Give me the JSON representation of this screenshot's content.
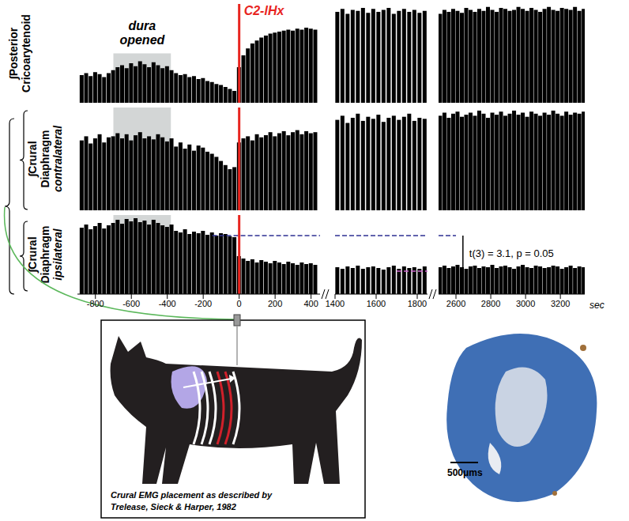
{
  "chart_data": [
    {
      "type": "bar",
      "title": "∫Posterior Cricoarytenoid",
      "color": "#000000",
      "ylim": [
        0,
        100
      ],
      "tick_labels": false,
      "x": [
        -875,
        -850,
        -825,
        -800,
        -775,
        -750,
        -725,
        -700,
        -675,
        -650,
        -625,
        -600,
        -575,
        -550,
        -525,
        -500,
        -475,
        -450,
        -425,
        -400,
        -375,
        -350,
        -325,
        -300,
        -275,
        -250,
        -225,
        -200,
        -175,
        -150,
        -125,
        -100,
        -75,
        -50,
        -25,
        0,
        25,
        50,
        75,
        100,
        125,
        150,
        175,
        200,
        225,
        250,
        275,
        300,
        325,
        350,
        375,
        400,
        425,
        1410,
        1435,
        1460,
        1485,
        1510,
        1535,
        1560,
        1585,
        1610,
        1635,
        1660,
        1685,
        1710,
        1735,
        1760,
        1785,
        1810,
        1835,
        2510,
        2535,
        2560,
        2585,
        2610,
        2635,
        2660,
        2685,
        2710,
        2735,
        2760,
        2785,
        2810,
        2835,
        2860,
        2885,
        2910,
        2935,
        2960,
        2985,
        3010,
        3035,
        3060,
        3085,
        3110,
        3135,
        3160,
        3185,
        3210,
        3235,
        3260,
        3285,
        3310,
        3335
      ],
      "values": [
        28,
        30,
        27,
        31,
        29,
        26,
        30,
        33,
        36,
        38,
        35,
        40,
        37,
        42,
        39,
        36,
        41,
        38,
        35,
        37,
        33,
        30,
        28,
        29,
        26,
        27,
        24,
        25,
        22,
        21,
        19,
        18,
        16,
        14,
        12,
        36,
        48,
        55,
        60,
        63,
        66,
        68,
        70,
        71,
        72,
        73,
        74,
        73,
        75,
        74,
        76,
        75,
        74,
        92,
        95,
        90,
        94,
        93,
        96,
        91,
        95,
        92,
        94,
        96,
        90,
        93,
        95,
        92,
        94,
        91,
        93,
        90,
        94,
        92,
        95,
        93,
        91,
        96,
        94,
        92,
        95,
        93,
        97,
        94,
        92,
        96,
        95,
        93,
        94,
        97,
        95,
        93,
        96,
        94,
        92,
        95,
        97,
        94,
        93,
        96,
        95,
        94,
        97,
        93,
        95
      ]
    },
    {
      "type": "bar",
      "title": "∫Crural Diaphragm",
      "subtitle": "contralateral",
      "color": "#000000",
      "ylim": [
        0,
        100
      ],
      "tick_labels": false,
      "x": [
        -875,
        -850,
        -825,
        -800,
        -775,
        -750,
        -725,
        -700,
        -675,
        -650,
        -625,
        -600,
        -575,
        -550,
        -525,
        -500,
        -475,
        -450,
        -425,
        -400,
        -375,
        -350,
        -325,
        -300,
        -275,
        -250,
        -225,
        -200,
        -175,
        -150,
        -125,
        -100,
        -75,
        -50,
        -25,
        0,
        25,
        50,
        75,
        100,
        125,
        150,
        175,
        200,
        225,
        250,
        275,
        300,
        325,
        350,
        375,
        400,
        425,
        1410,
        1435,
        1460,
        1485,
        1510,
        1535,
        1560,
        1585,
        1610,
        1635,
        1660,
        1685,
        1710,
        1735,
        1760,
        1785,
        1810,
        1835,
        2510,
        2535,
        2560,
        2585,
        2610,
        2635,
        2660,
        2685,
        2710,
        2735,
        2760,
        2785,
        2810,
        2835,
        2860,
        2885,
        2910,
        2935,
        2960,
        2985,
        3010,
        3035,
        3060,
        3085,
        3110,
        3135,
        3160,
        3185,
        3210,
        3235,
        3260,
        3285,
        3310,
        3335
      ],
      "values": [
        68,
        72,
        65,
        70,
        74,
        66,
        71,
        72,
        75,
        70,
        74,
        68,
        73,
        76,
        70,
        72,
        69,
        74,
        71,
        67,
        70,
        62,
        66,
        60,
        64,
        58,
        63,
        61,
        57,
        55,
        52,
        48,
        44,
        40,
        42,
        66,
        70,
        72,
        68,
        74,
        71,
        73,
        76,
        72,
        75,
        77,
        73,
        76,
        78,
        74,
        77,
        75,
        76,
        88,
        92,
        85,
        90,
        94,
        87,
        91,
        89,
        93,
        86,
        90,
        92,
        88,
        91,
        94,
        87,
        90,
        89,
        92,
        95,
        90,
        94,
        96,
        91,
        93,
        95,
        92,
        97,
        94,
        90,
        95,
        93,
        96,
        92,
        94,
        97,
        93,
        95,
        91,
        96,
        94,
        92,
        95,
        93,
        97,
        94,
        92,
        96,
        93,
        95,
        94,
        96
      ]
    },
    {
      "type": "bar",
      "title": "∫Crural Diaphragm",
      "subtitle": "ipsilateral",
      "color": "#000000",
      "ylim": [
        0,
        100
      ],
      "tick_labels": "x",
      "x": [
        -875,
        -850,
        -825,
        -800,
        -775,
        -750,
        -725,
        -700,
        -675,
        -650,
        -625,
        -600,
        -575,
        -550,
        -525,
        -500,
        -475,
        -450,
        -425,
        -400,
        -375,
        -350,
        -325,
        -300,
        -275,
        -250,
        -225,
        -200,
        -175,
        -150,
        -125,
        -100,
        -75,
        -50,
        -25,
        0,
        25,
        50,
        75,
        100,
        125,
        150,
        175,
        200,
        225,
        250,
        275,
        300,
        325,
        350,
        375,
        400,
        425,
        1410,
        1435,
        1460,
        1485,
        1510,
        1535,
        1560,
        1585,
        1610,
        1635,
        1660,
        1685,
        1710,
        1735,
        1760,
        1785,
        1810,
        1835,
        2510,
        2535,
        2560,
        2585,
        2610,
        2635,
        2660,
        2685,
        2710,
        2735,
        2760,
        2785,
        2810,
        2835,
        2860,
        2885,
        2910,
        2935,
        2960,
        2985,
        3010,
        3035,
        3060,
        3085,
        3110,
        3135,
        3160,
        3185,
        3210,
        3235,
        3260,
        3285,
        3310,
        3335
      ],
      "values": [
        84,
        88,
        82,
        86,
        90,
        83,
        87,
        90,
        94,
        89,
        95,
        92,
        96,
        91,
        93,
        88,
        94,
        90,
        87,
        85,
        88,
        80,
        78,
        82,
        76,
        79,
        77,
        80,
        75,
        78,
        74,
        77,
        76,
        73,
        72,
        48,
        45,
        42,
        44,
        40,
        43,
        41,
        39,
        42,
        40,
        38,
        41,
        39,
        37,
        40,
        38,
        39,
        37,
        34,
        32,
        35,
        33,
        36,
        32,
        34,
        35,
        33,
        31,
        34,
        36,
        32,
        35,
        33,
        34,
        32,
        35,
        34,
        36,
        33,
        35,
        37,
        34,
        32,
        35,
        36,
        33,
        35,
        34,
        37,
        33,
        35,
        36,
        34,
        32,
        35,
        37,
        34,
        33,
        36,
        35,
        33,
        34,
        36,
        35,
        32,
        34,
        36,
        33,
        35,
        34
      ],
      "reference_lines": [
        {
          "value": 74,
          "from": -150,
          "to": 2600,
          "color": "#2e3192",
          "line_style": "dashed"
        },
        {
          "value": 29,
          "from": 1700,
          "to": 1850,
          "color": "#cc66cc",
          "line_style": "dashed"
        }
      ],
      "bracket": {
        "x": 2640,
        "label": "t(3) = 3.1, p = 0.05"
      }
    }
  ],
  "x_axis": {
    "label": "sec",
    "segments": [
      {
        "xlim": [
          -900,
          450
        ],
        "xticks": [
          -800,
          -600,
          -400,
          -200,
          0,
          200,
          400
        ]
      },
      {
        "xlim": [
          1400,
          1850
        ],
        "xticks": [
          1400,
          1600,
          1800
        ]
      },
      {
        "xlim": [
          2500,
          3340
        ],
        "xticks": [
          2600,
          2800,
          3000,
          3200
        ]
      }
    ]
  },
  "annotations": {
    "shaded": {
      "label": "dura opened",
      "from": -700,
      "to": -380,
      "color": "#c4c8c8"
    },
    "event": {
      "label": "C2-lHx",
      "x": 0,
      "color": "#e8251f"
    }
  },
  "illustration": {
    "caption": [
      "Crural EMG placement as described by",
      "Trelease, Sieck & Harper, 1982"
    ]
  },
  "histology": {
    "scale_label": "500μms"
  }
}
